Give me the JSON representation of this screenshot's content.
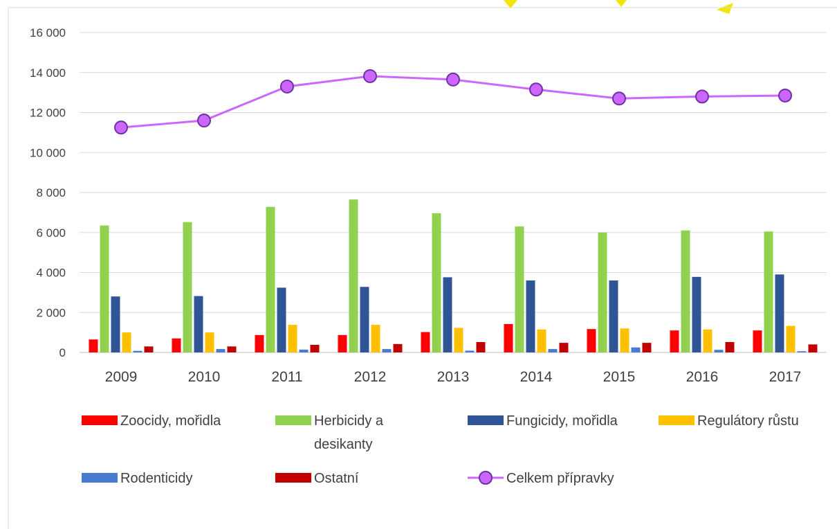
{
  "chart_data": {
    "type": "bar",
    "title": "",
    "xlabel": "",
    "ylabel": "",
    "ylim": [
      0,
      16000
    ],
    "yticks": [
      0,
      2000,
      4000,
      6000,
      8000,
      10000,
      12000,
      14000,
      16000
    ],
    "ytick_labels": [
      "0",
      "2 000",
      "4 000",
      "6 000",
      "8 000",
      "10 000",
      "12 000",
      "14 000",
      "16 000"
    ],
    "grid": true,
    "legend_position": "bottom",
    "categories": [
      "2009",
      "2010",
      "2011",
      "2012",
      "2013",
      "2014",
      "2015",
      "2016",
      "2017"
    ],
    "series": [
      {
        "name": "Zoocidy, mořidla",
        "kind": "bar",
        "color": "#ff0000",
        "values": [
          650,
          700,
          870,
          870,
          1020,
          1420,
          1170,
          1100,
          1100
        ]
      },
      {
        "name": "Herbicidy a desikanty",
        "kind": "bar",
        "color": "#92d050",
        "values": [
          6350,
          6520,
          7280,
          7650,
          6960,
          6300,
          6000,
          6100,
          6050
        ]
      },
      {
        "name": "Fungicidy, mořidla",
        "kind": "bar",
        "color": "#2f5597",
        "values": [
          2800,
          2820,
          3240,
          3280,
          3760,
          3600,
          3600,
          3780,
          3900
        ]
      },
      {
        "name": "Regulátory růstu",
        "kind": "bar",
        "color": "#ffc000",
        "values": [
          1000,
          1000,
          1380,
          1380,
          1230,
          1150,
          1200,
          1150,
          1330
        ]
      },
      {
        "name": "Rodenticidy",
        "kind": "bar",
        "color": "#4a7bd0",
        "values": [
          80,
          170,
          140,
          170,
          90,
          170,
          250,
          130,
          60
        ]
      },
      {
        "name": "Ostatní",
        "kind": "bar",
        "color": "#c00000",
        "values": [
          300,
          300,
          380,
          420,
          520,
          480,
          480,
          520,
          400
        ]
      },
      {
        "name": "Celkem přípravky",
        "kind": "line",
        "color": "#cc66ff",
        "marker_fill": "#cc66ff",
        "marker_stroke": "#7030a0",
        "values": [
          11250,
          11600,
          13300,
          13820,
          13650,
          13150,
          12700,
          12800,
          12850
        ]
      }
    ],
    "legend_rows": [
      [
        "Zoocidy, mořidla",
        "Herbicidy a desikanty",
        "Fungicidy, mořidla",
        "Regulátory růstu"
      ],
      [
        "Rodenticidy",
        "Ostatní",
        "Celkem přípravky"
      ]
    ]
  }
}
